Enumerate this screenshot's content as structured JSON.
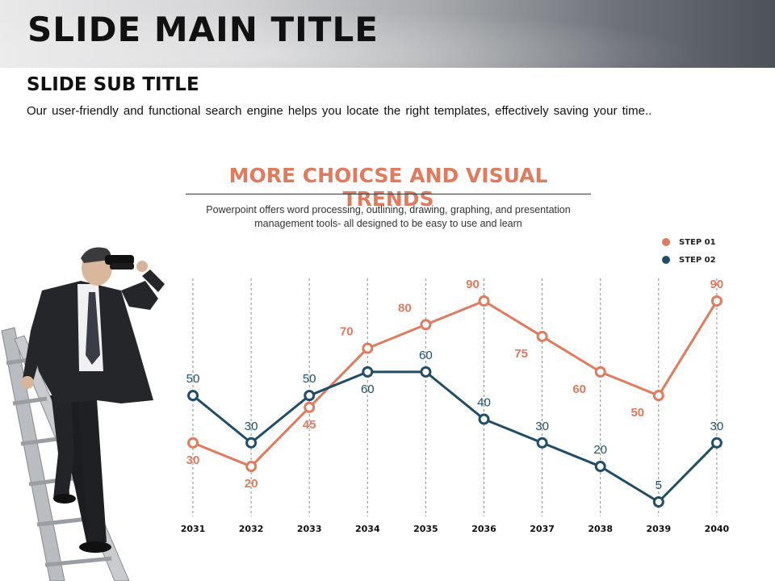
{
  "header": {
    "title": "SLIDE MAIN TITLE"
  },
  "subtitle": "SLIDE SUB TITLE",
  "description": "Our user-friendly and functional search engine helps you locate the right templates, effectively saving your time..",
  "chart_data": {
    "type": "line",
    "title": "MORE CHOICSE AND VISUAL TRENDS",
    "subtitle_lines": [
      "Powerpoint offers word processing, outlining, drawing, graphing, and presentation",
      "management tools- all designed to be easy to use and learn"
    ],
    "categories": [
      "2031",
      "2032",
      "2033",
      "2034",
      "2035",
      "2036",
      "2037",
      "2038",
      "2039",
      "2040"
    ],
    "series": [
      {
        "name": "STEP 01",
        "color": "#e07b5e",
        "values": [
          30,
          20,
          45,
          70,
          80,
          90,
          75,
          60,
          50,
          90
        ]
      },
      {
        "name": "STEP 02",
        "color": "#1f4e66",
        "values": [
          50,
          30,
          50,
          60,
          60,
          40,
          30,
          20,
          5,
          30
        ]
      }
    ],
    "ylim": [
      5,
      90
    ],
    "grid": "vertical-dashed",
    "legend": "top-right"
  },
  "colors": {
    "accent": "#e07b5e",
    "secondary": "#1f4e66"
  },
  "illustration": "businessman-with-binoculars-on-ladder"
}
